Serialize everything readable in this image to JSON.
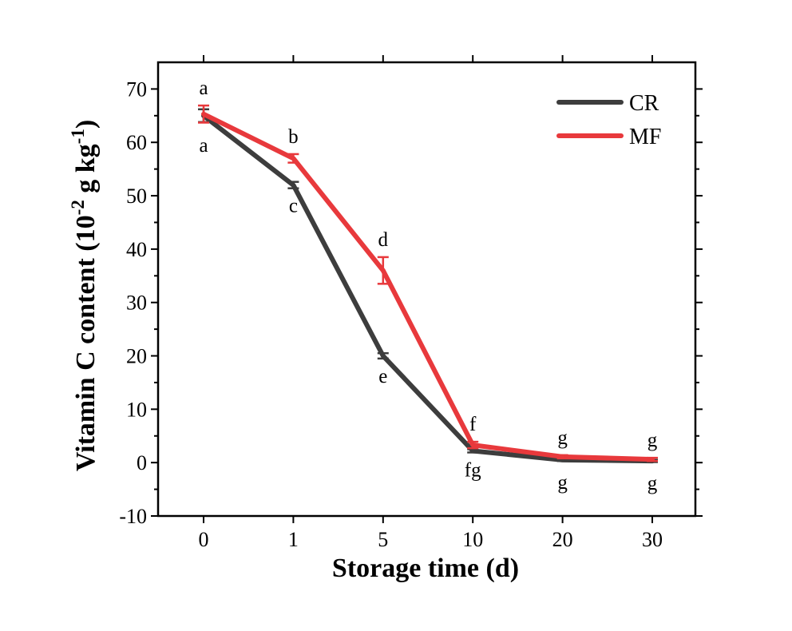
{
  "chart_data": {
    "type": "line",
    "xlabel": "Storage time (d)",
    "ylabel": {
      "pre": "Vitamin C content (10",
      "sup1": "-2",
      "mid": " g kg",
      "sup2": "-1",
      "post": ")"
    },
    "categories": [
      "0",
      "1",
      "5",
      "10",
      "20",
      "30"
    ],
    "ylim": [
      -10,
      75
    ],
    "yticks": [
      -10,
      0,
      10,
      20,
      30,
      40,
      50,
      60,
      70
    ],
    "legend_position": "top-right",
    "series": [
      {
        "name": "CR",
        "color": "#3d3d3d",
        "values": [
          65.0,
          52.0,
          20.0,
          2.2,
          0.5,
          0.3
        ],
        "errors": [
          1.2,
          0.6,
          0.5,
          0.3,
          0.2,
          0.2
        ],
        "labels": [
          "a",
          "c",
          "e",
          "fg",
          "g",
          "g"
        ]
      },
      {
        "name": "MF",
        "color": "#e8393c",
        "values": [
          65.3,
          57.0,
          36.0,
          3.3,
          1.1,
          0.6
        ],
        "errors": [
          1.6,
          0.8,
          2.5,
          0.6,
          0.3,
          0.3
        ],
        "labels": [
          "a",
          "b",
          "d",
          "f",
          "g",
          "g"
        ]
      }
    ]
  }
}
